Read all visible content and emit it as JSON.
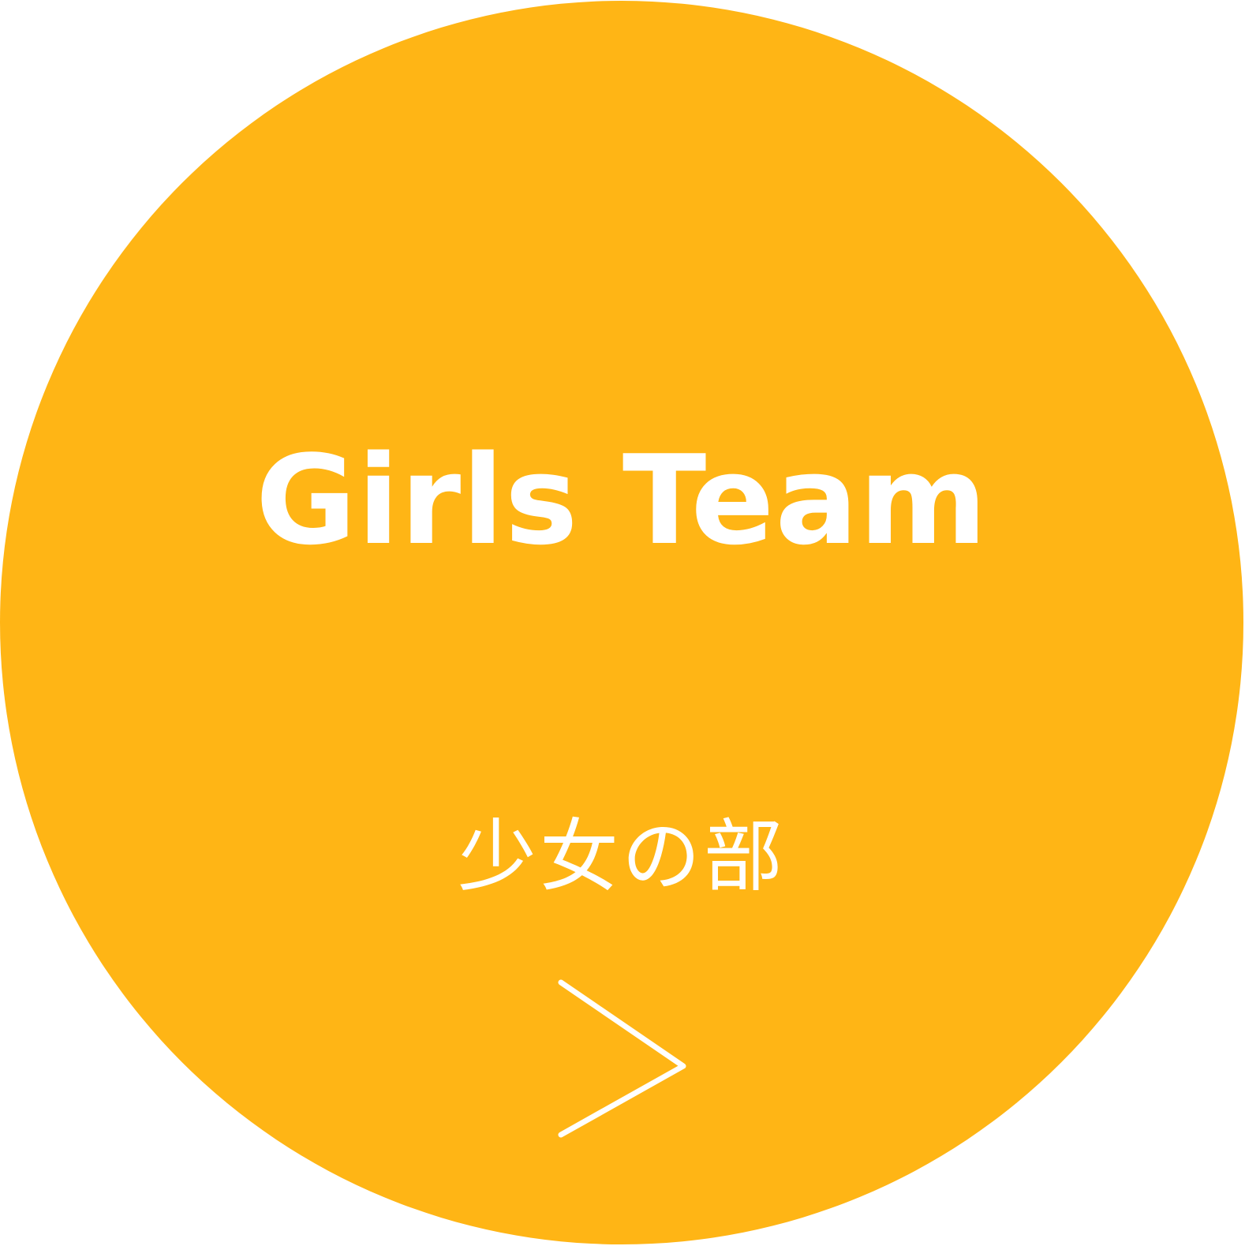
{
  "button": {
    "title": "Girls Team",
    "subtitle": "少女の部",
    "icon": "chevron-right-icon"
  },
  "colors": {
    "background": "#FFB515",
    "foreground": "#FFFFFF"
  }
}
